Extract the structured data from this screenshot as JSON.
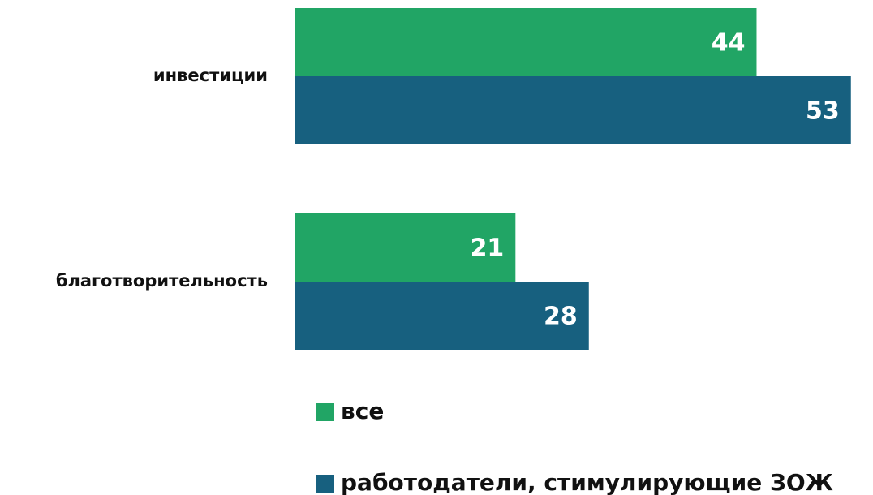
{
  "chart_data": {
    "type": "bar",
    "orientation": "horizontal",
    "categories": [
      "инвестиции",
      "благотворительность"
    ],
    "series": [
      {
        "name": "все",
        "color": "#21a565",
        "values": [
          44,
          21
        ]
      },
      {
        "name": "работодатели, стимулирующие ЗОЖ",
        "color": "#17607f",
        "values": [
          53,
          28
        ]
      }
    ]
  }
}
